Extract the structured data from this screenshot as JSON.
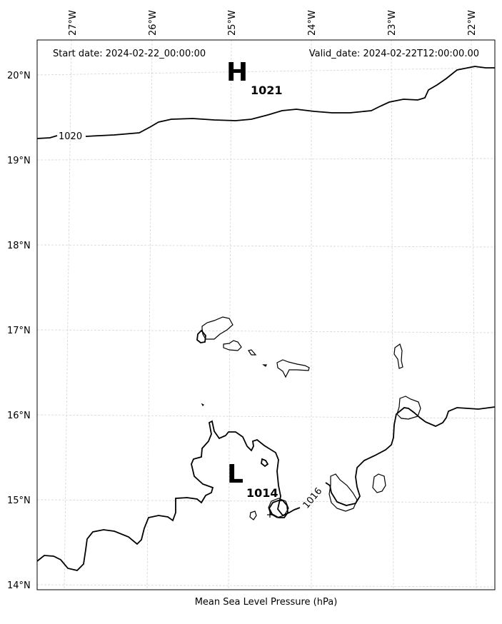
{
  "map": {
    "start_date": "Start date: 2024-02-22_00:00:00",
    "valid_date": "Valid_date: 2024-02-22T12:00:00.00",
    "caption": "Mean Sea Level Pressure (hPa)",
    "lon_labels": [
      "27°W",
      "26°W",
      "25°W",
      "24°W",
      "23°W",
      "22°W"
    ],
    "lat_labels": [
      "20°N",
      "19°N",
      "18°N",
      "17°N",
      "16°N",
      "15°N",
      "14°N"
    ],
    "high": {
      "letter": "H",
      "value": "1021"
    },
    "low": {
      "letter": "L",
      "value": "1014"
    },
    "contour_labels": [
      "1020",
      "1016"
    ],
    "colors": {
      "contour": "#000000",
      "grid": "#cccccc",
      "land": "#000000"
    }
  }
}
